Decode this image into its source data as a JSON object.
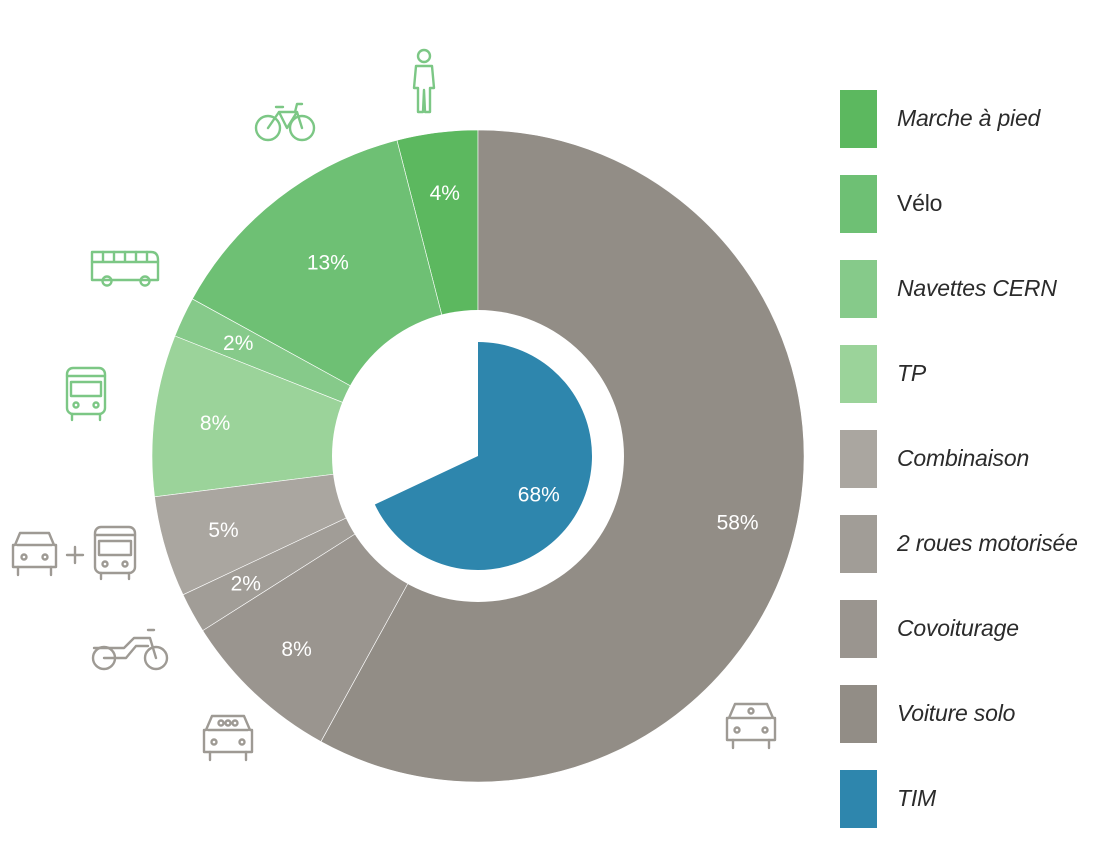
{
  "chart_data": {
    "type": "pie",
    "outer_ring": {
      "categories": [
        "Marche à pied",
        "Vélo",
        "Navettes CERN",
        "TP",
        "Combinaison",
        "2 roues motorisée",
        "Covoiturage",
        "Voiture solo"
      ],
      "values": [
        4,
        13,
        2,
        8,
        5,
        2,
        8,
        58
      ],
      "labels": [
        "4%",
        "13%",
        "2%",
        "8%",
        "5%",
        "2%",
        "8%",
        "58%"
      ],
      "colors": [
        "#5cb85f",
        "#6ec074",
        "#86ca8a",
        "#9bd39a",
        "#aaa6a0",
        "#a19d97",
        "#9a958f",
        "#928d86"
      ]
    },
    "inner": {
      "category": "TIM",
      "value": 68,
      "label": "68%",
      "color": "#2e86ad"
    },
    "legend_placement": "right"
  },
  "legend": {
    "items": [
      {
        "label": "Marche à pied",
        "color": "#5cb85f",
        "italic": true
      },
      {
        "label": "Vélo",
        "color": "#6ec074",
        "italic": false
      },
      {
        "label": "Navettes CERN",
        "color": "#86ca8a",
        "italic": true
      },
      {
        "label": "TP",
        "color": "#9bd39a",
        "italic": true
      },
      {
        "label": "Combinaison",
        "color": "#aaa6a0",
        "italic": true
      },
      {
        "label": "2 roues motorisée",
        "color": "#a19d97",
        "italic": true
      },
      {
        "label": "Covoiturage",
        "color": "#9a958f",
        "italic": true
      },
      {
        "label": "Voiture solo",
        "color": "#928d86",
        "italic": true
      },
      {
        "label": "TIM",
        "color": "#2e86ad",
        "italic": true
      }
    ]
  },
  "icons": [
    "pedestrian-icon",
    "bicycle-icon",
    "shuttle-bus-icon",
    "public-bus-icon",
    "car-plus-bus-icon",
    "motorcycle-icon",
    "carpool-car-icon",
    "solo-car-icon"
  ],
  "colors": {
    "icon_green": "#7cc785",
    "icon_grey": "#9e9a94"
  }
}
